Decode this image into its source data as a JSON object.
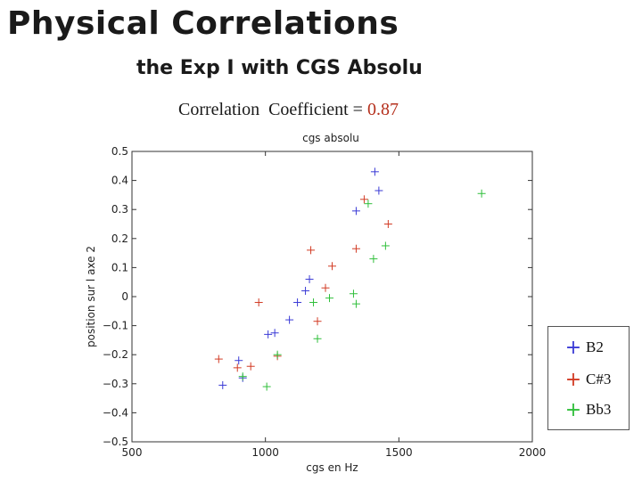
{
  "slide": {
    "title": "Physical Correlations",
    "subtitle": "the Exp I with CGS Absolu",
    "correlation_label": "Correlation  Coefficient = ",
    "correlation_value": "0.87"
  },
  "colors": {
    "B2": "#3a3ad6",
    "C#3": "#d23b24",
    "Bb3": "#2fbf3a",
    "corr_value": "#b5301d"
  },
  "chart_data": {
    "type": "scatter",
    "title": "cgs absolu",
    "xlabel": "cgs en Hz",
    "ylabel": "position sur l axe 2",
    "xlim": [
      500,
      2000
    ],
    "ylim": [
      -0.5,
      0.5
    ],
    "xticks": [
      "500",
      "1000",
      "1500",
      "2000"
    ],
    "yticks": [
      "0.5",
      "0.4",
      "0.3",
      "0.2",
      "0.1",
      "0",
      "−0.1",
      "−0.2",
      "−0.3",
      "−0.4",
      "−0.5"
    ],
    "marker": "+",
    "grid": false,
    "legend_position": "bottom-right",
    "series": [
      {
        "name": "B2",
        "color": "#3a3ad6",
        "points": [
          [
            840,
            -0.305
          ],
          [
            900,
            -0.22
          ],
          [
            915,
            -0.28
          ],
          [
            1010,
            -0.13
          ],
          [
            1035,
            -0.125
          ],
          [
            1090,
            -0.08
          ],
          [
            1120,
            -0.02
          ],
          [
            1150,
            0.02
          ],
          [
            1165,
            0.06
          ],
          [
            1340,
            0.295
          ],
          [
            1410,
            0.43
          ],
          [
            1425,
            0.365
          ]
        ]
      },
      {
        "name": "C#3",
        "color": "#d23b24",
        "points": [
          [
            825,
            -0.215
          ],
          [
            895,
            -0.245
          ],
          [
            945,
            -0.24
          ],
          [
            975,
            -0.02
          ],
          [
            1045,
            -0.205
          ],
          [
            1170,
            0.16
          ],
          [
            1195,
            -0.085
          ],
          [
            1225,
            0.03
          ],
          [
            1250,
            0.105
          ],
          [
            1340,
            0.165
          ],
          [
            1370,
            0.335
          ],
          [
            1460,
            0.25
          ]
        ]
      },
      {
        "name": "Bb3",
        "color": "#2fbf3a",
        "points": [
          [
            915,
            -0.275
          ],
          [
            1005,
            -0.31
          ],
          [
            1045,
            -0.2
          ],
          [
            1180,
            -0.02
          ],
          [
            1195,
            -0.145
          ],
          [
            1240,
            -0.005
          ],
          [
            1330,
            0.01
          ],
          [
            1340,
            -0.025
          ],
          [
            1385,
            0.32
          ],
          [
            1405,
            0.13
          ],
          [
            1450,
            0.175
          ],
          [
            1810,
            0.355
          ]
        ]
      }
    ]
  }
}
